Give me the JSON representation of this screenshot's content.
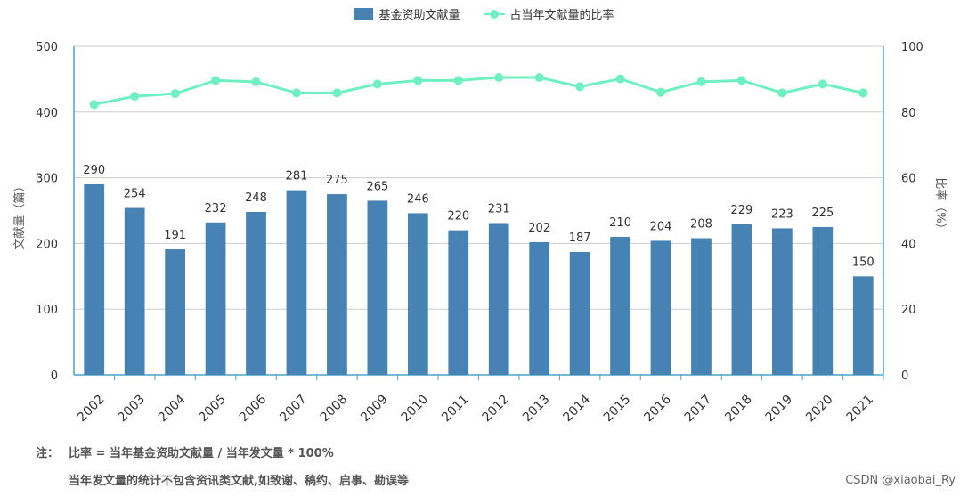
{
  "chart_data": {
    "type": "bar+line",
    "categories": [
      "2002",
      "2003",
      "2004",
      "2005",
      "2006",
      "2007",
      "2008",
      "2009",
      "2010",
      "2011",
      "2012",
      "2013",
      "2014",
      "2015",
      "2016",
      "2017",
      "2018",
      "2019",
      "2020",
      "2021"
    ],
    "series": [
      {
        "name": "基金资助文献量",
        "type": "bar",
        "axis": "left",
        "values": [
          290,
          254,
          191,
          232,
          248,
          281,
          275,
          265,
          246,
          220,
          231,
          202,
          187,
          210,
          204,
          208,
          229,
          223,
          225,
          150
        ]
      },
      {
        "name": "占当年文献量的比率",
        "type": "line",
        "axis": "right",
        "values": [
          82.3,
          84.8,
          85.6,
          89.6,
          89.2,
          85.8,
          85.8,
          88.5,
          89.6,
          89.6,
          90.5,
          90.5,
          87.7,
          90.1,
          86.0,
          89.2,
          89.6,
          85.8,
          88.5,
          85.8
        ]
      }
    ],
    "ylabel_left": "文献量（篇）",
    "ylabel_right": "比率（%）",
    "ylim_left": [
      0,
      500
    ],
    "ylim_right": [
      0,
      100
    ],
    "yticks_left": [
      "0",
      "100",
      "200",
      "300",
      "400",
      "500"
    ],
    "yticks_right": [
      "0",
      "20",
      "40",
      "60",
      "80",
      "100"
    ],
    "grid": true,
    "legend_position": "top-center",
    "colors": {
      "bar": "#4682b4",
      "line": "#6ff0c0",
      "axis": "#4aa3c8",
      "grid": "#cccccc"
    }
  },
  "notes": {
    "label": "注：",
    "line1": "比率 = 当年基金资助文献量 / 当年发文量 * 100%",
    "line2": "当年发文量的统计不包含资讯类文献,如致谢、稿约、启事、勘误等"
  },
  "watermark": "CSDN @xiaobai_Ry"
}
